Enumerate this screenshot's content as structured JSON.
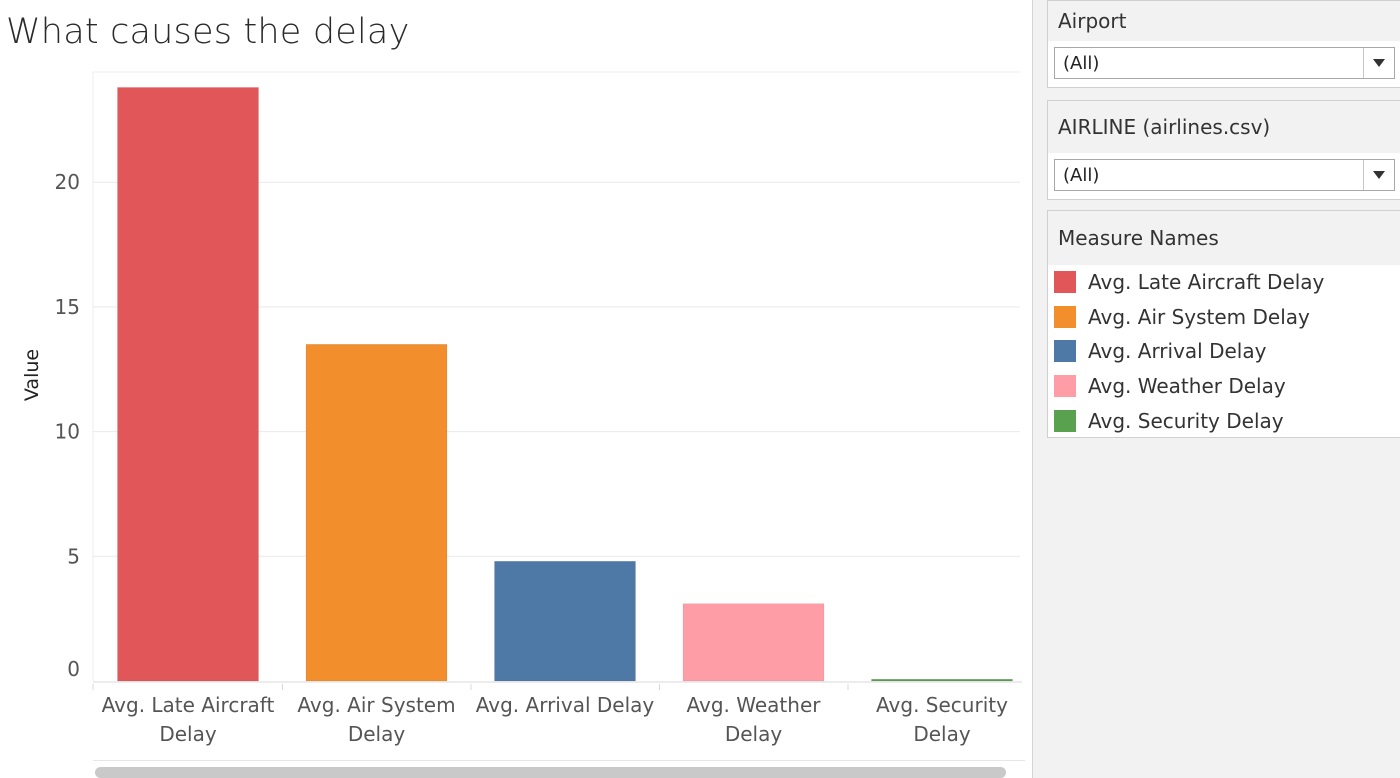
{
  "title": "What causes the delay",
  "filters": [
    {
      "label": "Airport",
      "value": "(All)"
    },
    {
      "label": "AIRLINE (airlines.csv)",
      "value": "(All)"
    }
  ],
  "legend": {
    "title": "Measure Names",
    "items": [
      {
        "label": "Avg. Late Aircraft Delay",
        "color": "#e15759"
      },
      {
        "label": "Avg. Air System Delay",
        "color": "#f28e2b"
      },
      {
        "label": "Avg. Arrival Delay",
        "color": "#4e79a7"
      },
      {
        "label": "Avg. Weather Delay",
        "color": "#ff9da7"
      },
      {
        "label": "Avg. Security Delay",
        "color": "#59a14f"
      }
    ]
  },
  "chart_data": {
    "type": "bar",
    "ylabel": "Value",
    "ylim": [
      0,
      24.5
    ],
    "yticks": [
      0,
      5,
      10,
      15,
      20
    ],
    "grid": true,
    "categories": [
      [
        "Avg. Late Aircraft",
        "Delay"
      ],
      [
        "Avg. Air System",
        "Delay"
      ],
      [
        "Avg. Arrival Delay"
      ],
      [
        "Avg. Weather",
        "Delay"
      ],
      [
        "Avg. Security",
        "Delay"
      ]
    ],
    "values": [
      23.8,
      13.5,
      4.8,
      3.1,
      0.07
    ],
    "colors": [
      "#e15759",
      "#f28e2b",
      "#4e79a7",
      "#ff9da7",
      "#59a14f"
    ]
  }
}
